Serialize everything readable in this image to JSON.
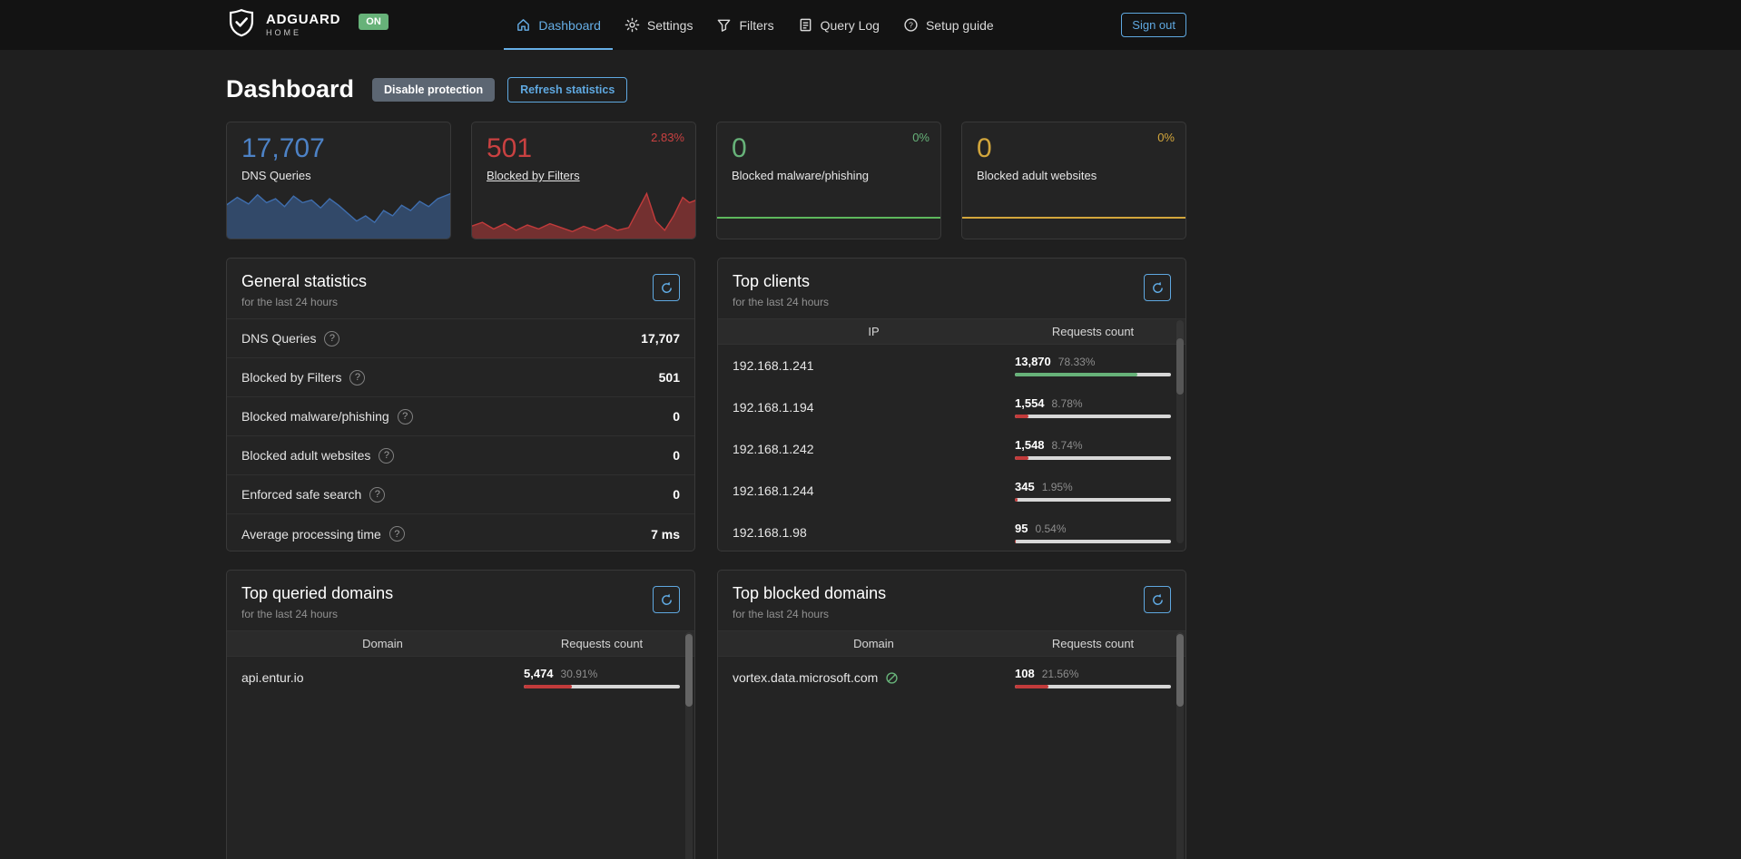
{
  "header": {
    "brand": {
      "name": "ADGUARD",
      "sub": "HOME",
      "status": "ON"
    },
    "nav": [
      {
        "label": "Dashboard",
        "active": true
      },
      {
        "label": "Settings",
        "active": false
      },
      {
        "label": "Filters",
        "active": false
      },
      {
        "label": "Query Log",
        "active": false
      },
      {
        "label": "Setup guide",
        "active": false
      }
    ],
    "sign_out": "Sign out"
  },
  "page": {
    "title": "Dashboard",
    "buttons": {
      "disable_protection": "Disable protection",
      "refresh_statistics": "Refresh statistics"
    }
  },
  "colors": {
    "accent": "#66aee6",
    "green": "#67b279",
    "red": "#c23b3b",
    "blue": "#4d82c6",
    "yellow": "#d2a63c",
    "bar_track": "#d7d7d7"
  },
  "stat_cards": [
    {
      "value": "17,707",
      "label": "DNS Queries",
      "color": "#4d82c6",
      "percent": "",
      "percent_color": "#4d82c6",
      "chart": {
        "type": "area",
        "stroke": "#3f6eae",
        "fill": "rgba(63,110,174,0.5)",
        "points": [
          [
            0,
            14
          ],
          [
            5,
            8
          ],
          [
            10,
            13
          ],
          [
            14,
            6
          ],
          [
            18,
            12
          ],
          [
            22,
            9
          ],
          [
            26,
            15
          ],
          [
            30,
            7
          ],
          [
            34,
            12
          ],
          [
            38,
            10
          ],
          [
            42,
            16
          ],
          [
            46,
            9
          ],
          [
            50,
            14
          ],
          [
            54,
            20
          ],
          [
            58,
            26
          ],
          [
            62,
            22
          ],
          [
            66,
            27
          ],
          [
            70,
            18
          ],
          [
            74,
            22
          ],
          [
            78,
            14
          ],
          [
            82,
            18
          ],
          [
            86,
            11
          ],
          [
            90,
            15
          ],
          [
            94,
            9
          ],
          [
            100,
            5
          ]
        ]
      }
    },
    {
      "value": "501",
      "label": "Blocked by Filters",
      "color": "#c94141",
      "percent": "2.83%",
      "percent_color": "#c94141",
      "chart": {
        "type": "area",
        "stroke": "#c23b3b",
        "fill": "rgba(194,59,59,0.5)",
        "points": [
          [
            0,
            30
          ],
          [
            5,
            27
          ],
          [
            10,
            32
          ],
          [
            15,
            28
          ],
          [
            20,
            33
          ],
          [
            25,
            29
          ],
          [
            30,
            32
          ],
          [
            35,
            28
          ],
          [
            40,
            31
          ],
          [
            45,
            34
          ],
          [
            50,
            30
          ],
          [
            55,
            33
          ],
          [
            60,
            29
          ],
          [
            65,
            33
          ],
          [
            70,
            31
          ],
          [
            74,
            18
          ],
          [
            78,
            5
          ],
          [
            82,
            26
          ],
          [
            86,
            33
          ],
          [
            90,
            22
          ],
          [
            94,
            8
          ],
          [
            97,
            12
          ],
          [
            100,
            10
          ]
        ]
      }
    },
    {
      "value": "0",
      "label": "Blocked malware/phishing",
      "color": "#67b279",
      "percent": "0%",
      "percent_color": "#67b279",
      "chart": {
        "type": "flat",
        "stroke": "#5db85c"
      }
    },
    {
      "value": "0",
      "label": "Blocked adult websites",
      "color": "#d2a63c",
      "percent": "0%",
      "percent_color": "#d2a63c",
      "chart": {
        "type": "flat",
        "stroke": "#d2a63c"
      }
    }
  ],
  "general_stats": {
    "title": "General statistics",
    "subtitle": "for the last 24 hours",
    "rows": [
      {
        "label": "DNS Queries",
        "value": "17,707"
      },
      {
        "label": "Blocked by Filters",
        "value": "501"
      },
      {
        "label": "Blocked malware/phishing",
        "value": "0"
      },
      {
        "label": "Blocked adult websites",
        "value": "0"
      },
      {
        "label": "Enforced safe search",
        "value": "0"
      },
      {
        "label": "Average processing time",
        "value": "7 ms"
      }
    ]
  },
  "top_clients": {
    "title": "Top clients",
    "subtitle": "for the last 24 hours",
    "col_ip": "IP",
    "col_count": "Requests count",
    "rows": [
      {
        "ip": "192.168.1.241",
        "count": "13,870",
        "percent": "78.33%",
        "bar": "78.33%",
        "bar_color": "#67b279"
      },
      {
        "ip": "192.168.1.194",
        "count": "1,554",
        "percent": "8.78%",
        "bar": "8.78%",
        "bar_color": "#c23b3b"
      },
      {
        "ip": "192.168.1.242",
        "count": "1,548",
        "percent": "8.74%",
        "bar": "8.74%",
        "bar_color": "#c23b3b"
      },
      {
        "ip": "192.168.1.244",
        "count": "345",
        "percent": "1.95%",
        "bar": "1.95%",
        "bar_color": "#c23b3b"
      },
      {
        "ip": "192.168.1.98",
        "count": "95",
        "percent": "0.54%",
        "bar": "0.54%",
        "bar_color": "#c23b3b"
      }
    ]
  },
  "top_queried": {
    "title": "Top queried domains",
    "subtitle": "for the last 24 hours",
    "col_domain": "Domain",
    "col_count": "Requests count",
    "rows": [
      {
        "domain": "api.entur.io",
        "count": "5,474",
        "percent": "30.91%",
        "bar": "30.91%",
        "bar_color": "#c23b3b"
      }
    ]
  },
  "top_blocked": {
    "title": "Top blocked domains",
    "subtitle": "for the last 24 hours",
    "col_domain": "Domain",
    "col_count": "Requests count",
    "rows": [
      {
        "domain": "vortex.data.microsoft.com",
        "count": "108",
        "percent": "21.56%",
        "bar": "21.56%",
        "bar_color": "#c23b3b"
      }
    ]
  }
}
